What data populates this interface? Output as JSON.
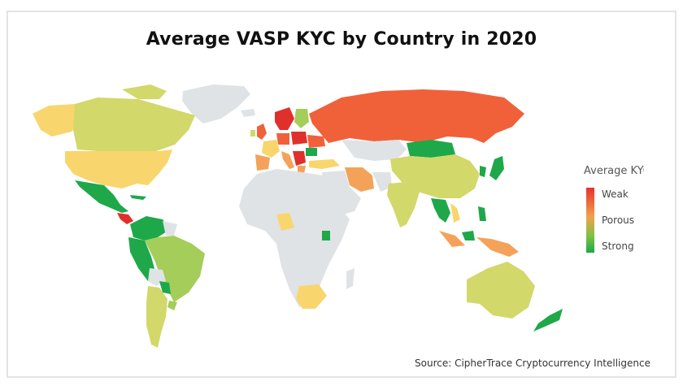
{
  "title": "Average VASP KYC by Country in 2020",
  "legend": {
    "title": "Average KYC",
    "labels": [
      "Weak",
      "Porous",
      "Strong"
    ]
  },
  "source": "Source: CipherTrace Cryptocurrency Intelligence",
  "colors": {
    "weak": "#f0613a",
    "weak_dark": "#e0302b",
    "porous_orange": "#f4a259",
    "porous": "#f8d66d",
    "mid": "#d2d86a",
    "light_green": "#a4cd5a",
    "strong": "#1ea84a",
    "no_data": "#dfe3e5"
  }
}
